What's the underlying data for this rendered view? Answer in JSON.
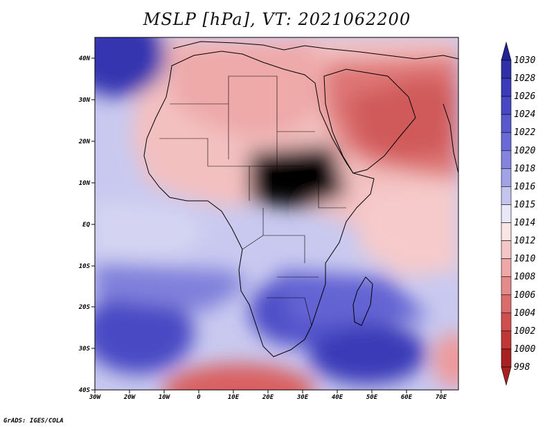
{
  "title": "MSLP [hPa], VT: 2021062200",
  "credit": "GrADS: IGES/COLA",
  "map": {
    "variable": "MSLP",
    "units": "hPa",
    "valid_time": "2021062200",
    "lon_range": [
      -30,
      75
    ],
    "lat_range": [
      -40,
      45
    ],
    "x_ticks": [
      "30W",
      "20W",
      "10W",
      "0",
      "10E",
      "20E",
      "30E",
      "40E",
      "50E",
      "60E",
      "70E"
    ],
    "y_ticks": [
      "40N",
      "30N",
      "20N",
      "10N",
      "EQ",
      "10S",
      "20S",
      "30S",
      "40S"
    ]
  },
  "colorbar": {
    "labels": [
      "1030",
      "1028",
      "1026",
      "1024",
      "1022",
      "1020",
      "1018",
      "1016",
      "1015",
      "1014",
      "1012",
      "1010",
      "1008",
      "1006",
      "1004",
      "1002",
      "1000",
      "998"
    ],
    "colors": [
      "#232394",
      "#2f2fa8",
      "#3b3bbb",
      "#4848c6",
      "#5858cf",
      "#6a6ad6",
      "#8484de",
      "#a2a2e6",
      "#c4c4ef",
      "#e8e8f8",
      "#fbe4e4",
      "#f5c6c6",
      "#ee a8a8",
      "#e48a8a",
      "#da6c6c",
      "#cf4f4f",
      "#c23636",
      "#a82020"
    ]
  }
}
